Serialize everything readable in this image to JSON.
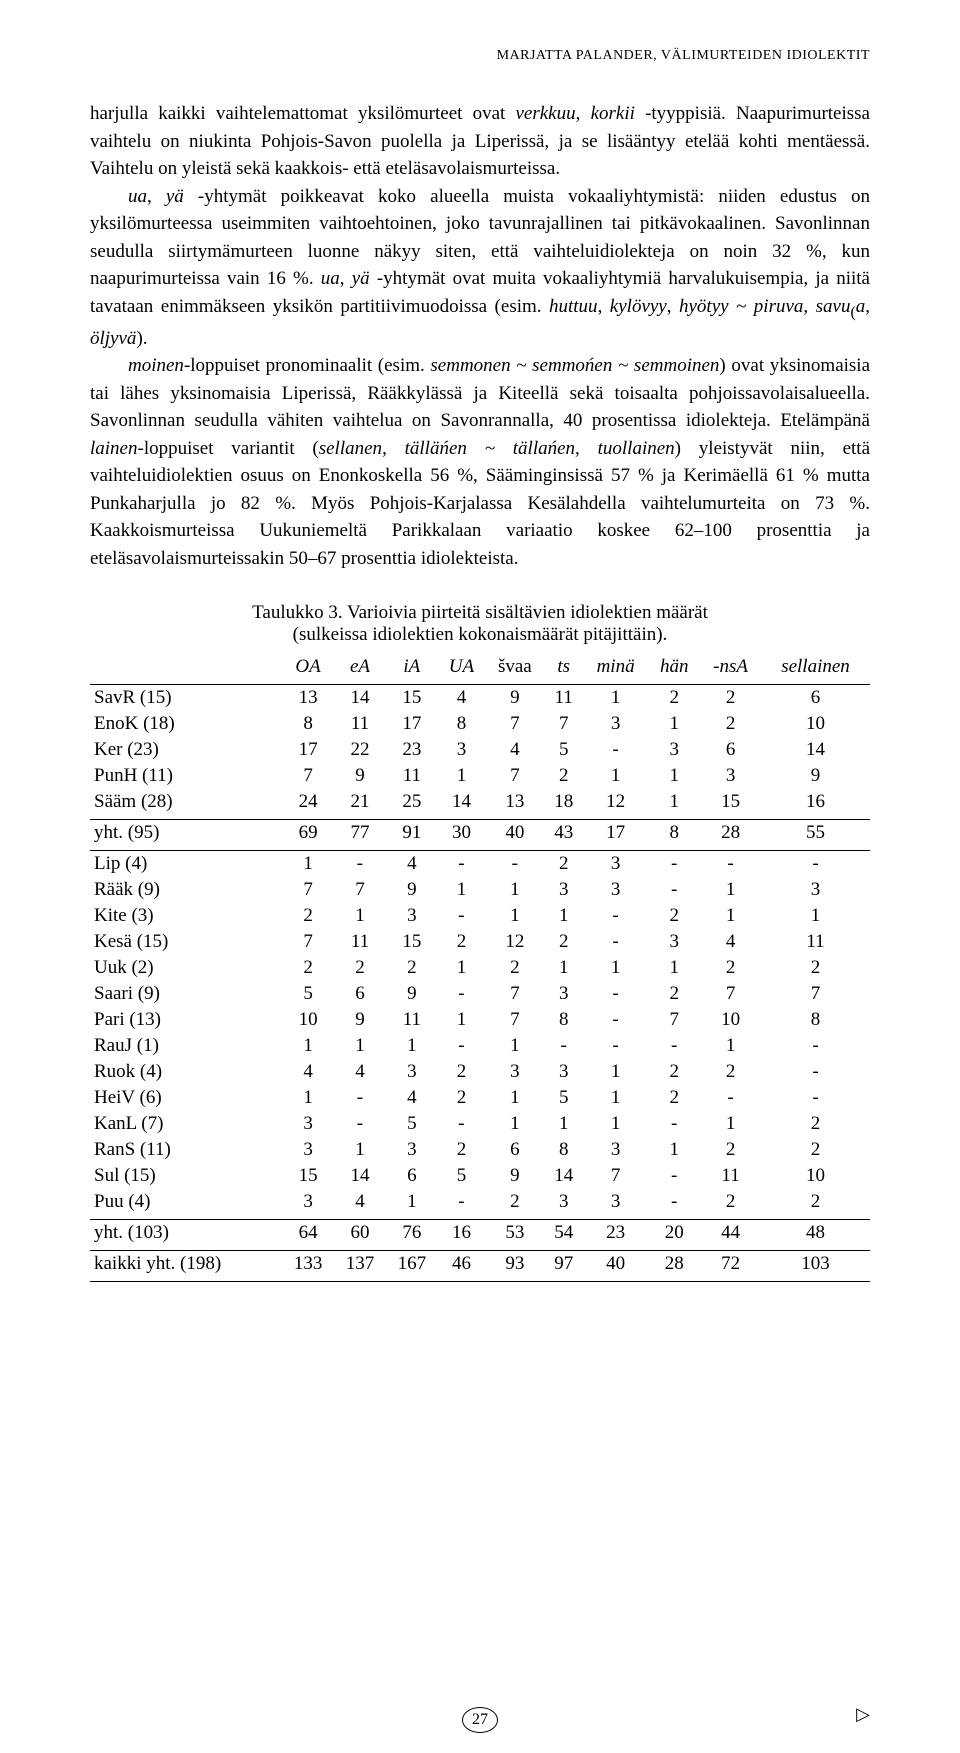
{
  "running_head": "MARJATTA PALANDER, VÄLIMURTEIDEN IDIOLEKTIT",
  "paragraphs": [
    "harjulla kaikki vaihtelemattomat yksilömurteet ovat <i>verkkuu</i>, <i>korkii</i> -tyyppisiä. Naapurimurteissa vaihtelu on niukinta Pohjois-Savon puolella ja Liperissä, ja se lisääntyy etelää kohti mentäessä. Vaihtelu on yleistä sekä kaakkois- että eteläsavolaismurteissa.",
    "<i>ua</i>, <i>yä</i> -yhtymät poikkeavat koko alueella muista vokaaliyhtymistä: niiden edustus on yksilömurteessa useimmiten vaihtoehtoinen, joko tavunrajallinen tai pitkävokaalinen. Savonlinnan seudulla siirtymämurteen luonne näkyy siten, että vaihteluidiolekteja on noin 32 %, kun naapurimurteissa vain 16 %. <i>ua</i>, <i>yä</i> -yhtymät ovat muita vokaaliyhtymiä harvalukuisempia, ja niitä tavataan enimmäkseen yksikön partitiivimuodoissa (esim. <i>huttuu</i>, <i>kylövyy</i>, <i>hyötyy ~ piruva</i>, <i>savu</i><sub>(</sub><i>a</i>, <i>öljyvä</i>).",
    "<i>moinen</i>-loppuiset pronominaalit (esim. <i>semmonen ~ semmońen ~ semmoinen</i>) ovat yksinomaisia tai lähes yksinomaisia Liperissä, Rääkkylässä ja Kiteellä sekä toisaalta pohjoissavolaisalueella. Savonlinnan seudulla vähiten vaihtelua on Savonrannalla, 40 prosentissa idiolekteja. Etelämpänä <i>lainen</i>-loppuiset variantit (<i>sellanen</i>, <i>tälläńen ~ tällańen</i>, <i>tuollainen</i>) yleistyvät niin, että vaihteluidiolektien osuus on Enonkoskella 56 %, Sääminginsissä 57 % ja Kerimäellä 61 % mutta Punkaharjulla jo 82 %. Myös Pohjois-Karjalassa Kesälahdella vaihtelumurteita on 73 %. Kaakkoismurteissa Uukuniemeltä Parikkalaan variaatio koskee 62–100 prosenttia ja eteläsavolaismurteissakin 50–67 prosenttia idiolekteista."
  ],
  "table": {
    "caption_line1": "Taulukko 3. Varioivia piirteitä sisältävien idiolektien määrät",
    "caption_line2": "(sulkeissa idiolektien kokonaismäärät pitäjittäin).",
    "columns": [
      "OA",
      "eA",
      "iA",
      "UA",
      "švaa",
      "ts",
      "minä",
      "hän",
      "-nsA",
      "sellainen"
    ],
    "groups": [
      {
        "rows": [
          [
            "SavR (15)",
            "13",
            "14",
            "15",
            "4",
            "9",
            "11",
            "1",
            "2",
            "2",
            "6"
          ],
          [
            "EnoK (18)",
            "8",
            "11",
            "17",
            "8",
            "7",
            "7",
            "3",
            "1",
            "2",
            "10"
          ],
          [
            "Ker (23)",
            "17",
            "22",
            "23",
            "3",
            "4",
            "5",
            "-",
            "3",
            "6",
            "14"
          ],
          [
            "PunH (11)",
            "7",
            "9",
            "11",
            "1",
            "7",
            "2",
            "1",
            "1",
            "3",
            "9"
          ],
          [
            "Sääm (28)",
            "24",
            "21",
            "25",
            "14",
            "13",
            "18",
            "12",
            "1",
            "15",
            "16"
          ]
        ],
        "total": [
          "yht. (95)",
          "69",
          "77",
          "91",
          "30",
          "40",
          "43",
          "17",
          "8",
          "28",
          "55"
        ]
      },
      {
        "rows": [
          [
            "Lip (4)",
            "1",
            "-",
            "4",
            "-",
            "-",
            "2",
            "3",
            "-",
            "-",
            "-"
          ],
          [
            "Rääk (9)",
            "7",
            "7",
            "9",
            "1",
            "1",
            "3",
            "3",
            "-",
            "1",
            "3"
          ],
          [
            "Kite (3)",
            "2",
            "1",
            "3",
            "-",
            "1",
            "1",
            "-",
            "2",
            "1",
            "1"
          ],
          [
            "Kesä (15)",
            "7",
            "11",
            "15",
            "2",
            "12",
            "2",
            "-",
            "3",
            "4",
            "11"
          ],
          [
            "Uuk (2)",
            "2",
            "2",
            "2",
            "1",
            "2",
            "1",
            "1",
            "1",
            "2",
            "2"
          ],
          [
            "Saari (9)",
            "5",
            "6",
            "9",
            "-",
            "7",
            "3",
            "-",
            "2",
            "7",
            "7"
          ],
          [
            "Pari (13)",
            "10",
            "9",
            "11",
            "1",
            "7",
            "8",
            "-",
            "7",
            "10",
            "8"
          ],
          [
            "RauJ (1)",
            "1",
            "1",
            "1",
            "-",
            "1",
            "-",
            "-",
            "-",
            "1",
            "-"
          ],
          [
            "Ruok (4)",
            "4",
            "4",
            "3",
            "2",
            "3",
            "3",
            "1",
            "2",
            "2",
            "-"
          ],
          [
            "HeiV (6)",
            "1",
            "-",
            "4",
            "2",
            "1",
            "5",
            "1",
            "2",
            "-",
            "-"
          ],
          [
            "KanL (7)",
            "3",
            "-",
            "5",
            "-",
            "1",
            "1",
            "1",
            "-",
            "1",
            "2"
          ],
          [
            "RanS (11)",
            "3",
            "1",
            "3",
            "2",
            "6",
            "8",
            "3",
            "1",
            "2",
            "2"
          ],
          [
            "Sul (15)",
            "15",
            "14",
            "6",
            "5",
            "9",
            "14",
            "7",
            "-",
            "11",
            "10"
          ],
          [
            "Puu (4)",
            "3",
            "4",
            "1",
            "-",
            "2",
            "3",
            "3",
            "-",
            "2",
            "2"
          ]
        ],
        "total": [
          "yht. (103)",
          "64",
          "60",
          "76",
          "16",
          "53",
          "54",
          "23",
          "20",
          "44",
          "48"
        ]
      }
    ],
    "grand_total": [
      "kaikki yht. (198)",
      "133",
      "137",
      "167",
      "46",
      "93",
      "97",
      "40",
      "28",
      "72",
      "103"
    ]
  },
  "page_number": "27"
}
